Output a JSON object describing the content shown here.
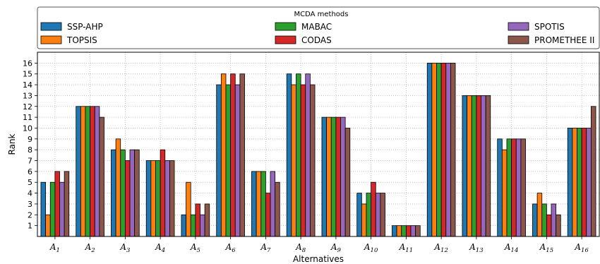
{
  "chart_data": {
    "type": "bar",
    "xlabel": "Alternatives",
    "ylabel": "Rank",
    "ylim": [
      0,
      17
    ],
    "yticks": [
      1,
      2,
      3,
      4,
      5,
      6,
      7,
      8,
      9,
      10,
      11,
      12,
      13,
      14,
      15,
      16
    ],
    "grid": true,
    "legend": {
      "title": "MCDA methods",
      "placement": "top"
    },
    "categories": [
      {
        "base": "A",
        "sub": "1"
      },
      {
        "base": "A",
        "sub": "2"
      },
      {
        "base": "A",
        "sub": "3"
      },
      {
        "base": "A",
        "sub": "4"
      },
      {
        "base": "A",
        "sub": "5"
      },
      {
        "base": "A",
        "sub": "6"
      },
      {
        "base": "A",
        "sub": "7"
      },
      {
        "base": "A",
        "sub": "8"
      },
      {
        "base": "A",
        "sub": "9"
      },
      {
        "base": "A",
        "sub": "10"
      },
      {
        "base": "A",
        "sub": "11"
      },
      {
        "base": "A",
        "sub": "12"
      },
      {
        "base": "A",
        "sub": "13"
      },
      {
        "base": "A",
        "sub": "14"
      },
      {
        "base": "A",
        "sub": "15"
      },
      {
        "base": "A",
        "sub": "16"
      }
    ],
    "series": [
      {
        "name": "SSP-AHP",
        "color": "#1f77b4",
        "values": [
          5,
          12,
          8,
          7,
          2,
          14,
          6,
          15,
          11,
          4,
          1,
          16,
          13,
          9,
          3,
          10
        ]
      },
      {
        "name": "TOPSIS",
        "color": "#ff7f0e",
        "values": [
          2,
          12,
          9,
          7,
          5,
          15,
          6,
          14,
          11,
          3,
          1,
          16,
          13,
          8,
          4,
          10
        ]
      },
      {
        "name": "MABAC",
        "color": "#2ca02c",
        "values": [
          5,
          12,
          8,
          7,
          2,
          14,
          6,
          15,
          11,
          4,
          1,
          16,
          13,
          9,
          3,
          10
        ]
      },
      {
        "name": "CODAS",
        "color": "#d62728",
        "values": [
          6,
          12,
          7,
          8,
          3,
          15,
          4,
          14,
          11,
          5,
          1,
          16,
          13,
          9,
          2,
          10
        ]
      },
      {
        "name": "SPOTIS",
        "color": "#9467bd",
        "values": [
          5,
          12,
          8,
          7,
          2,
          14,
          6,
          15,
          11,
          4,
          1,
          16,
          13,
          9,
          3,
          10
        ]
      },
      {
        "name": "PROMETHEE II",
        "color": "#8c564b",
        "values": [
          6,
          11,
          8,
          7,
          3,
          15,
          5,
          14,
          10,
          4,
          1,
          16,
          13,
          9,
          2,
          12
        ]
      }
    ]
  }
}
